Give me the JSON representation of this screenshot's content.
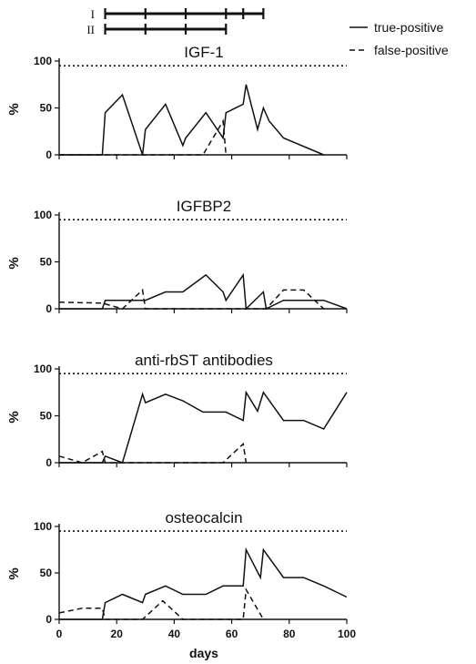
{
  "legend": {
    "true_label": "true-positive",
    "false_label": "false-positive"
  },
  "schedules": [
    {
      "label": "I",
      "x_start": 16,
      "x_end": 71,
      "injections": [
        16,
        30,
        44,
        58,
        64,
        71
      ]
    },
    {
      "label": "II",
      "x_start": 16,
      "x_end": 58,
      "injections": [
        16,
        30,
        44,
        58
      ]
    }
  ],
  "xaxis": {
    "label": "days",
    "ticks": [
      0,
      20,
      40,
      60,
      80,
      100
    ],
    "range": [
      0,
      100
    ]
  },
  "yaxis": {
    "label": "%",
    "ticks": [
      0,
      50,
      100
    ],
    "range": [
      0,
      100
    ]
  },
  "chart_data": [
    {
      "type": "line",
      "title": "IGF-1",
      "threshold": 95,
      "series": [
        {
          "name": "true-positive",
          "style": "solid",
          "x": [
            0,
            15,
            16,
            22,
            29,
            30,
            37,
            43,
            44,
            51,
            57,
            58,
            64,
            65,
            69,
            71,
            73,
            78,
            92
          ],
          "y": [
            0,
            0,
            45,
            64,
            0,
            27,
            54,
            10,
            18,
            45,
            18,
            45,
            54,
            75,
            27,
            50,
            36,
            18,
            0
          ]
        },
        {
          "name": "false-positive",
          "style": "dashed",
          "x": [
            0,
            50,
            57,
            58
          ],
          "y": [
            0,
            0,
            36,
            0
          ]
        }
      ]
    },
    {
      "type": "line",
      "title": "IGFBP2",
      "threshold": 95,
      "series": [
        {
          "name": "true-positive",
          "style": "solid",
          "x": [
            0,
            15,
            16,
            22,
            29,
            30,
            37,
            43,
            51,
            57,
            58,
            64,
            65,
            71,
            72,
            78,
            85,
            92,
            100
          ],
          "y": [
            0,
            0,
            9,
            9,
            9,
            9,
            18,
            18,
            36,
            18,
            9,
            36,
            0,
            18,
            0,
            9,
            9,
            9,
            0
          ]
        },
        {
          "name": "false-positive",
          "style": "dashed",
          "x": [
            0,
            15,
            22,
            29,
            30,
            71,
            72,
            78,
            85,
            92
          ],
          "y": [
            7,
            6,
            0,
            20,
            0,
            0,
            0,
            20,
            20,
            0
          ]
        }
      ]
    },
    {
      "type": "line",
      "title": "anti-rbST antibodies",
      "threshold": 95,
      "series": [
        {
          "name": "true-positive",
          "style": "solid",
          "x": [
            0,
            15,
            16,
            22,
            29,
            30,
            37,
            43,
            50,
            57,
            58,
            64,
            65,
            69,
            71,
            78,
            85,
            92,
            100
          ],
          "y": [
            0,
            0,
            7,
            0,
            73,
            64,
            73,
            66,
            54,
            54,
            54,
            45,
            75,
            55,
            75,
            45,
            45,
            36,
            75
          ]
        },
        {
          "name": "false-positive",
          "style": "dashed",
          "x": [
            0,
            8,
            15,
            16,
            22,
            57,
            64,
            65
          ],
          "y": [
            7,
            0,
            12,
            0,
            0,
            0,
            20,
            0
          ]
        }
      ]
    },
    {
      "type": "line",
      "title": "osteocalcin",
      "threshold": 95,
      "series": [
        {
          "name": "true-positive",
          "style": "solid",
          "x": [
            0,
            15,
            16,
            22,
            29,
            30,
            37,
            43,
            51,
            57,
            58,
            64,
            65,
            70,
            71,
            78,
            85,
            92,
            100
          ],
          "y": [
            0,
            0,
            18,
            27,
            18,
            27,
            36,
            27,
            27,
            36,
            36,
            36,
            75,
            45,
            75,
            45,
            45,
            36,
            24
          ]
        },
        {
          "name": "false-positive",
          "style": "dashed",
          "x": [
            0,
            8,
            15,
            16,
            29,
            36,
            43,
            57,
            64,
            65,
            71
          ],
          "y": [
            7,
            12,
            12,
            0,
            0,
            20,
            0,
            0,
            0,
            32,
            0
          ]
        }
      ]
    }
  ]
}
